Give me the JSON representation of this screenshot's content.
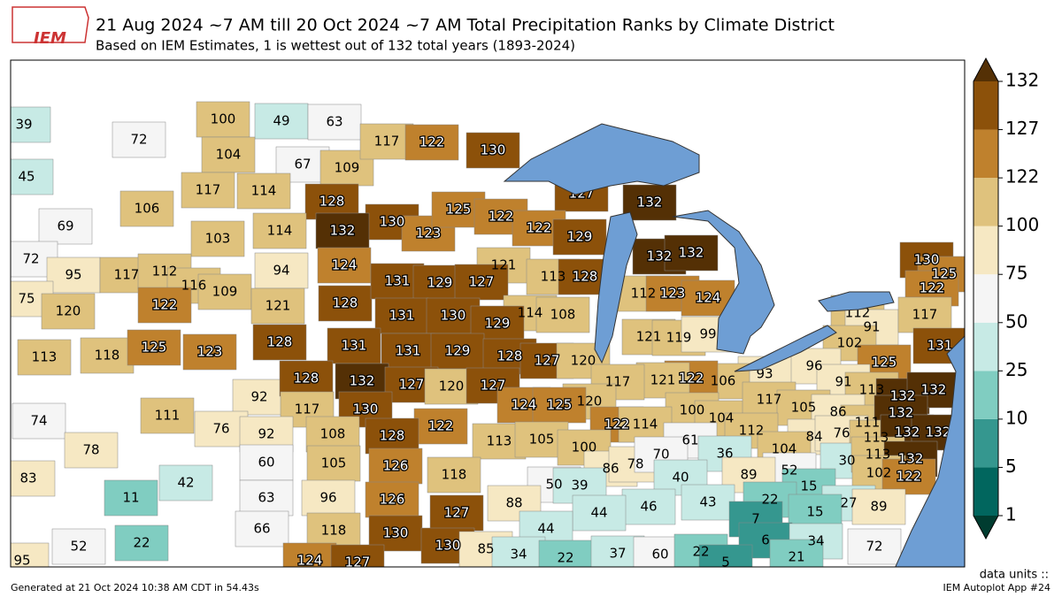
{
  "header": {
    "logo": "IEM",
    "title": "21 Aug 2024 ~7 AM till 20 Oct 2024 ~7 AM Total Precipitation Ranks by Climate District",
    "subtitle": "Based on IEM Estimates, 1 is wettest out of 132 total years (1893-2024)"
  },
  "colorbar": {
    "ticks": [
      1,
      5,
      10,
      25,
      50,
      75,
      100,
      122,
      127,
      132
    ],
    "colors": [
      "#01665e",
      "#35978f",
      "#80cdc1",
      "#c7eae5",
      "#f5f5f5",
      "#f6e8c3",
      "#dfc27d",
      "#bf812d",
      "#8c510a"
    ],
    "over": "#543005",
    "under": "#003c30",
    "units": "data units ::"
  },
  "districts": [
    39,
    72,
    45,
    69,
    106,
    100,
    49,
    63,
    104,
    67,
    109,
    117,
    114,
    128,
    117,
    122,
    130,
    127,
    132,
    130,
    123,
    125,
    122,
    122,
    129,
    132,
    132,
    103,
    114,
    132,
    124,
    94,
    121,
    113,
    128,
    72,
    95,
    117,
    112,
    116,
    109,
    122,
    75,
    120,
    121,
    128,
    131,
    129,
    127,
    112,
    123,
    124,
    114,
    108,
    131,
    130,
    129,
    113,
    118,
    125,
    123,
    128,
    131,
    131,
    129,
    128,
    127,
    120,
    121,
    119,
    99,
    112,
    91,
    102,
    130,
    125,
    122,
    117,
    131,
    125,
    96,
    93,
    91,
    106,
    122,
    121,
    117,
    113,
    132,
    132,
    92,
    128,
    132,
    127,
    120,
    127,
    120,
    124,
    125,
    117,
    130,
    74,
    111,
    76,
    100,
    104,
    117,
    105,
    86,
    111,
    132,
    122,
    122,
    114,
    112,
    78,
    92,
    108,
    128,
    113,
    105,
    100,
    84,
    76,
    113,
    132,
    132,
    61,
    36,
    104,
    60,
    105,
    126,
    118,
    86,
    78,
    70,
    30,
    113,
    132,
    52,
    83,
    42,
    40,
    89,
    102,
    122,
    50,
    39,
    15,
    63,
    96,
    126,
    11,
    88,
    43,
    46,
    22,
    27,
    89,
    127,
    44,
    7,
    15,
    66,
    118,
    130,
    44,
    52,
    22,
    130,
    85,
    34,
    22,
    37,
    60,
    22,
    6,
    34,
    72,
    5,
    21,
    95,
    124,
    127
  ],
  "footer": {
    "left": "Generated at 21 Oct 2024 10:38 AM CDT in 54.43s",
    "right": "IEM Autoplot App #24"
  }
}
